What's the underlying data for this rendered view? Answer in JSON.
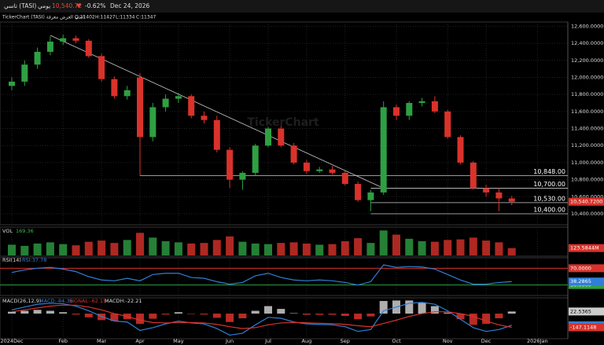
{
  "header": {
    "symbol": "تاسي (TASI)",
    "period": "يومي",
    "price": "10,540.72",
    "change": "-0.62%",
    "date": "Dec 24, 2026",
    "legend": "TickerChart (TASI) تاسي العرض معرفة",
    "open": "O:11402",
    "high": "H:11427",
    "low": "L:11334",
    "close": "C:11347",
    "watermark": "TickerChart"
  },
  "chart_data": {
    "type": "candlestick",
    "categories": [
      "2024Dec",
      null,
      null,
      null,
      "Feb",
      null,
      null,
      "Mar",
      null,
      null,
      "Apr",
      null,
      null,
      "May",
      null,
      null,
      null,
      "Jun",
      null,
      null,
      "Jul",
      null,
      null,
      "Aug",
      null,
      null,
      "Sep",
      null,
      null,
      null,
      "Oct",
      null,
      null,
      null,
      "Nov",
      null,
      null,
      "Dec",
      null,
      null,
      null,
      "2026Jan"
    ],
    "open": [
      11900,
      11950,
      12150,
      12300,
      12420,
      12460,
      12430,
      12250,
      11980,
      11780,
      12000,
      11300,
      11650,
      11750,
      11780,
      11550,
      11500,
      11150,
      10800,
      10880,
      11200,
      11400,
      11200,
      11000,
      10900,
      10920,
      10880,
      10750,
      10560,
      10650,
      11650,
      11550,
      11700,
      11720,
      11600,
      11300,
      11000,
      10700,
      10650,
      10580,
      null,
      null
    ],
    "high": [
      12000,
      12200,
      12350,
      12480,
      12500,
      12490,
      12450,
      12280,
      12010,
      11900,
      12050,
      11700,
      11800,
      11820,
      11800,
      11600,
      11550,
      11180,
      10900,
      11220,
      11420,
      11430,
      11230,
      11030,
      10950,
      10960,
      10900,
      10780,
      10680,
      11720,
      11680,
      11720,
      11760,
      11780,
      11620,
      11320,
      11020,
      10740,
      10700,
      10610,
      null,
      null
    ],
    "low": [
      11850,
      11900,
      12100,
      12260,
      12380,
      12400,
      12230,
      11950,
      11750,
      11740,
      10850,
      11250,
      11600,
      11700,
      11520,
      11460,
      11120,
      10700,
      10680,
      10850,
      11180,
      11180,
      10980,
      10870,
      10880,
      10860,
      10730,
      10540,
      10430,
      10620,
      11500,
      11500,
      11660,
      11580,
      11280,
      10980,
      10680,
      10600,
      10430,
      10500,
      null,
      null
    ],
    "close": [
      11950,
      12150,
      12300,
      12420,
      12460,
      12430,
      12250,
      11980,
      11780,
      11850,
      11300,
      11650,
      11750,
      11780,
      11550,
      11500,
      11150,
      10800,
      10880,
      11200,
      11400,
      11200,
      11000,
      10900,
      10920,
      10880,
      10750,
      10560,
      10650,
      11650,
      11550,
      11700,
      11720,
      11600,
      11300,
      11000,
      10700,
      10650,
      10580,
      10540.72,
      null,
      null
    ],
    "up_color": "#2ea043",
    "down_color": "#d9322b",
    "ylim": [
      10280,
      12650
    ],
    "yticks": [
      {
        "value": 12600,
        "label": "12,600.0000"
      },
      {
        "value": 12400,
        "label": "12,400.0000"
      },
      {
        "value": 12200,
        "label": "12,200.0000"
      },
      {
        "value": 12000,
        "label": "12,000.0000"
      },
      {
        "value": 11800,
        "label": "11,800.0000"
      },
      {
        "value": 11600,
        "label": "11,600.0000"
      },
      {
        "value": 11400,
        "label": "11,400.0000"
      },
      {
        "value": 11200,
        "label": "11,200.0000"
      },
      {
        "value": 11000,
        "label": "11,000.0000"
      },
      {
        "value": 10800,
        "label": "10,800.0000"
      },
      {
        "value": 10600,
        "label": "10,600.0000"
      },
      {
        "value": 10400,
        "label": "10,400.0000"
      }
    ],
    "last_price": {
      "value": 10540.72,
      "label": "10,540.7200"
    },
    "levels": [
      {
        "value": 10848,
        "label": "10,848.00",
        "start": 10
      },
      {
        "value": 10700,
        "label": "10,700.00",
        "start": 28
      },
      {
        "value": 10530,
        "label": "10,530.00",
        "start": 28
      },
      {
        "value": 10400,
        "label": "10,400.00",
        "start": 28
      }
    ],
    "trendline": {
      "x": [
        3,
        28.8
      ],
      "y": [
        12493,
        10713
      ]
    },
    "volume": {
      "label": "VOL",
      "readout": "169.36",
      "color": "#d9322b",
      "vlim": [
        0,
        450
      ],
      "values": [
        180,
        160,
        200,
        220,
        190,
        170,
        230,
        250,
        210,
        260,
        380,
        300,
        240,
        220,
        200,
        210,
        260,
        320,
        230,
        200,
        190,
        210,
        220,
        200,
        180,
        190,
        240,
        290,
        210,
        420,
        350,
        280,
        240,
        230,
        260,
        270,
        300,
        250,
        220,
        123.5844,
        null,
        null
      ],
      "last_label": "123.5844M"
    },
    "rsi": {
      "label": "RSI(14)",
      "readout": "RSI:37.78",
      "color": "#2f7fd8",
      "ylim": [
        5,
        95
      ],
      "values": [
        60,
        66,
        70,
        72,
        68,
        62,
        50,
        42,
        40,
        46,
        40,
        55,
        58,
        58,
        48,
        46,
        38,
        32,
        36,
        52,
        58,
        48,
        42,
        40,
        42,
        40,
        36,
        30,
        38,
        78,
        72,
        74,
        73,
        68,
        55,
        42,
        32,
        32,
        36,
        38.2865,
        null,
        null
      ],
      "bands": [
        {
          "value": 70,
          "label": "70.0000",
          "color": "#d9322b"
        },
        {
          "value": 30,
          "label": "30.0000",
          "color": "#2ea043"
        }
      ],
      "last_label": "38.2865"
    },
    "macd": {
      "label": "MACD(26,12,9)",
      "readout_macd": "MACD:-84.36",
      "readout_signal": "SIGNAL:-62.15",
      "readout_hist": "MACDH:-22.21",
      "ylim": [
        -260,
        160
      ],
      "macd_color": "#2f7fd8",
      "signal_color": "#d9322b",
      "hist_up": "#cccccc",
      "hist_down": "#d9322b",
      "macd": [
        40,
        70,
        100,
        110,
        105,
        80,
        30,
        -30,
        -80,
        -90,
        -180,
        -150,
        -110,
        -80,
        -100,
        -110,
        -160,
        -230,
        -210,
        -120,
        -40,
        -50,
        -90,
        -110,
        -115,
        -120,
        -140,
        -190,
        -170,
        30,
        70,
        110,
        120,
        100,
        30,
        -60,
        -150,
        -190,
        -170,
        -124.5783,
        null,
        null
      ],
      "signal": [
        20,
        40,
        60,
        80,
        90,
        90,
        70,
        40,
        0,
        -30,
        -70,
        -95,
        -100,
        -95,
        -95,
        -100,
        -115,
        -140,
        -160,
        -150,
        -120,
        -100,
        -95,
        -98,
        -103,
        -108,
        -115,
        -130,
        -140,
        -105,
        -70,
        -30,
        0,
        20,
        20,
        0,
        -30,
        -80,
        -120,
        -147.1148,
        null,
        null
      ],
      "histogram": [
        20,
        30,
        40,
        30,
        15,
        -10,
        -40,
        -70,
        -80,
        -60,
        -110,
        -55,
        -10,
        15,
        -5,
        -10,
        -45,
        -90,
        -50,
        30,
        80,
        50,
        5,
        -12,
        -12,
        -12,
        -25,
        -60,
        -30,
        135,
        140,
        140,
        120,
        80,
        10,
        -60,
        -120,
        -110,
        -50,
        22.5365,
        null,
        null
      ],
      "labels": [
        {
          "value": 22.5365,
          "label": "22.5365"
        },
        {
          "value": -124.5783,
          "label": "-124.5783"
        },
        {
          "value": -147.1148,
          "label": "-147.1148"
        }
      ]
    }
  }
}
